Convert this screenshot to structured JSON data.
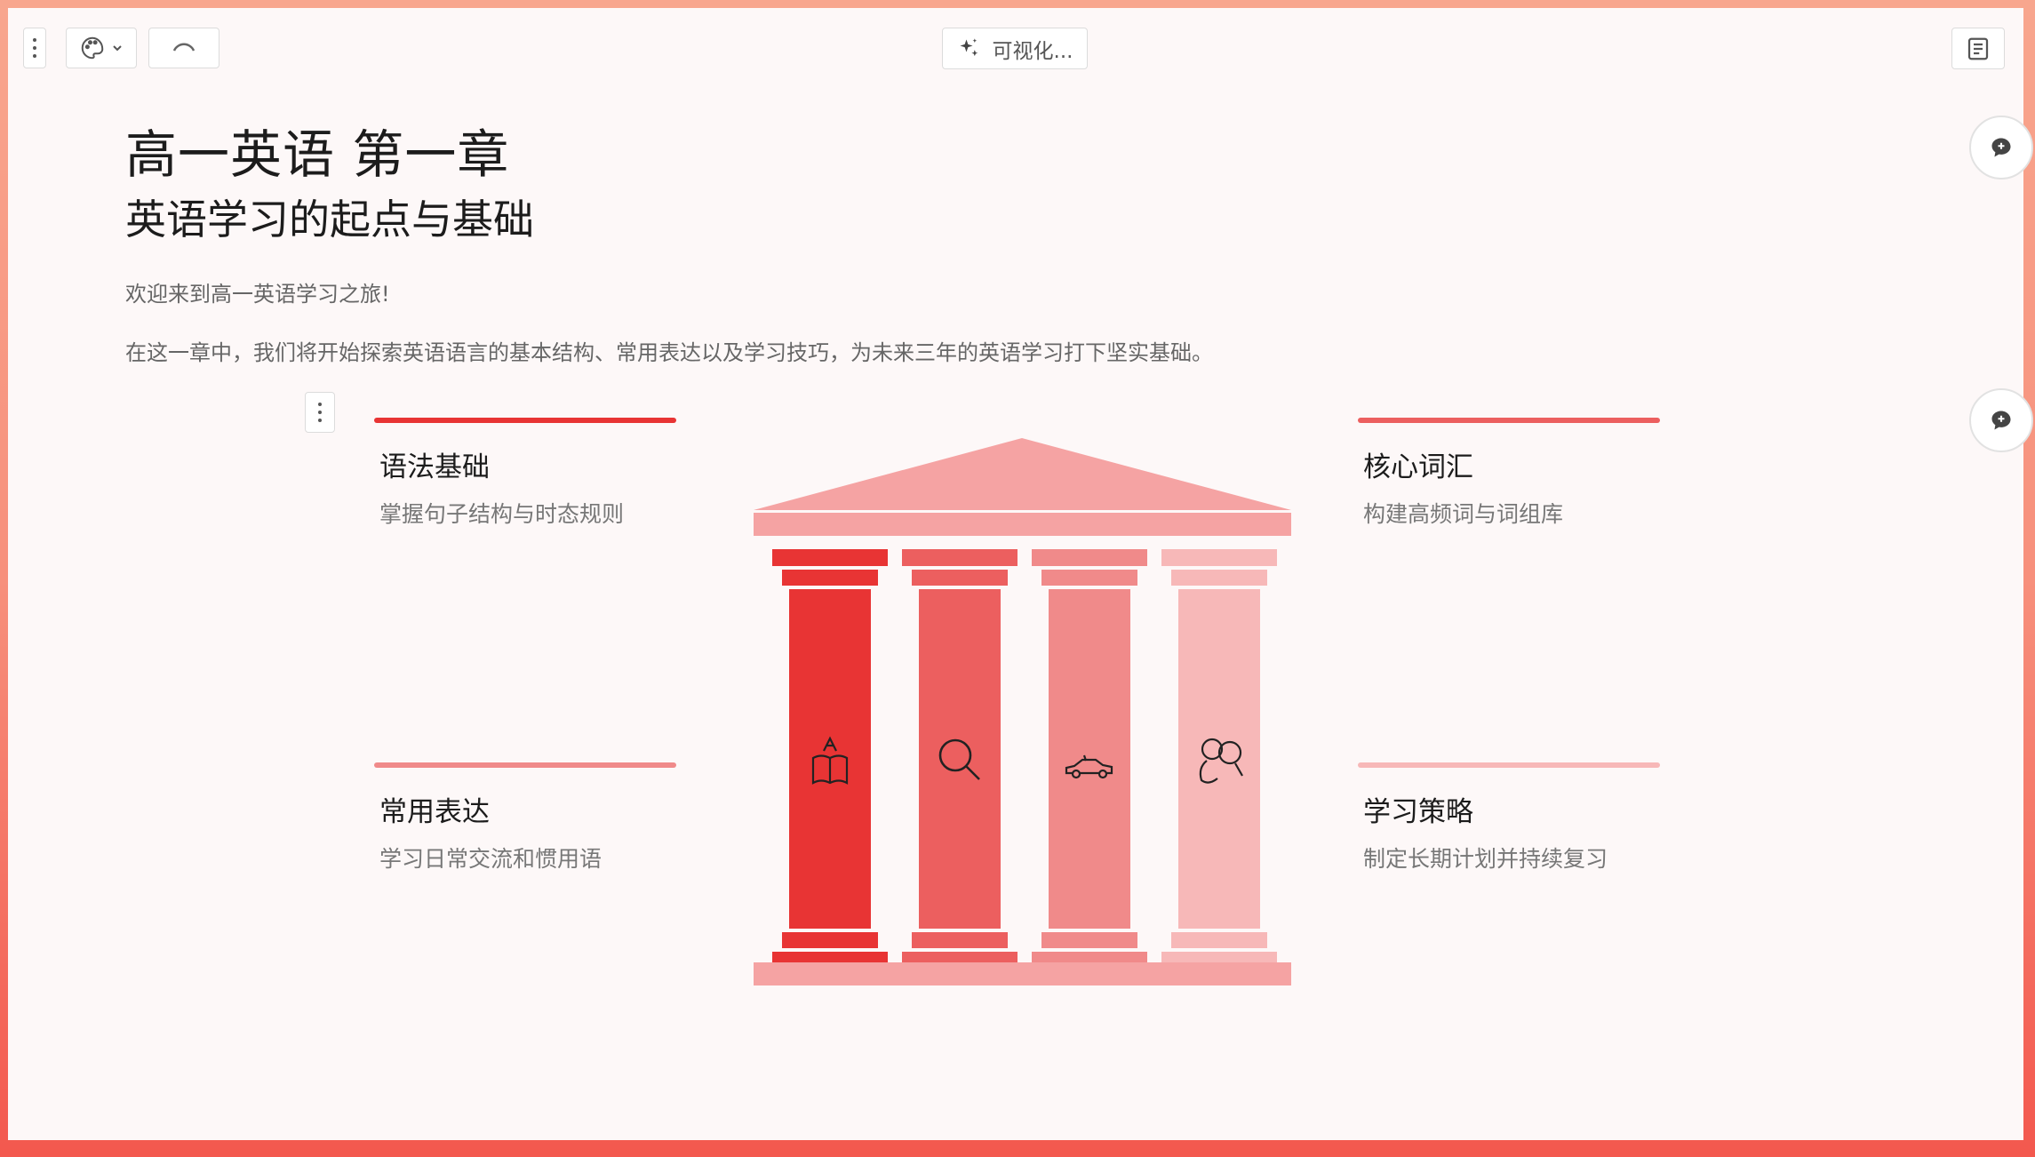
{
  "toolbar": {
    "visualize_label": "可视化..."
  },
  "heading": {
    "title": "高一英语 第一章",
    "subtitle": "英语学习的起点与基础"
  },
  "intro": {
    "line1": "欢迎来到高一英语学习之旅!",
    "line2": "在这一章中，我们将开始探索英语语言的基本结构、常用表达以及学习技巧，为未来三年的英语学习打下坚实基础。"
  },
  "pillars": [
    {
      "title": "语法基础",
      "desc": "掌握句子结构与时态规则",
      "color": "#e83434",
      "icon": "book-icon"
    },
    {
      "title": "核心词汇",
      "desc": "构建高频词与词组库",
      "color": "#ec5f5f",
      "icon": "magnifier-icon"
    },
    {
      "title": "常用表达",
      "desc": "学习日常交流和惯用语",
      "color": "#f08a8a",
      "icon": "car-icon"
    },
    {
      "title": "学习策略",
      "desc": "制定长期计划并持续复习",
      "color": "#f7b8b8",
      "icon": "people-icon"
    }
  ],
  "colors": {
    "roof": "#f5a3a3",
    "canvas": "#fdf8f8"
  }
}
